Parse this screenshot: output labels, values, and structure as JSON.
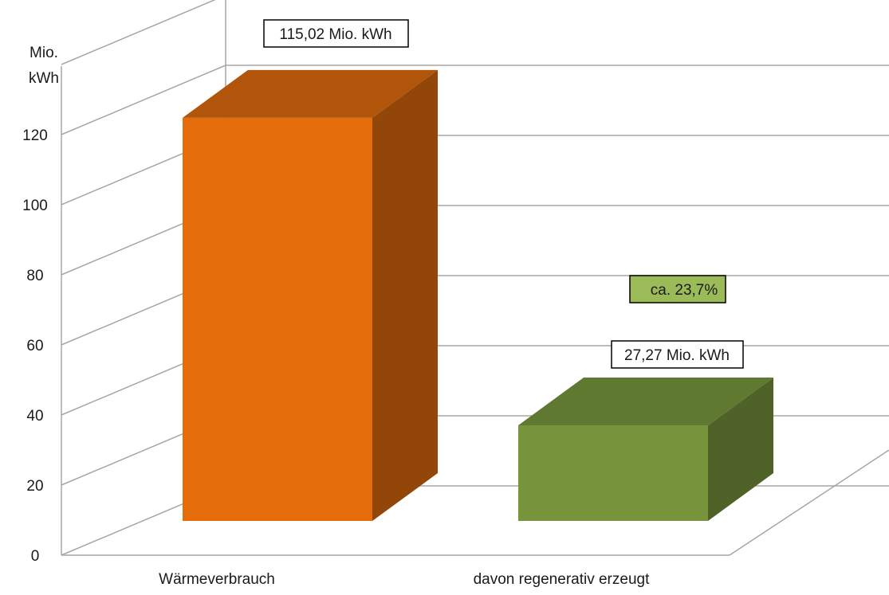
{
  "chart_data": {
    "type": "bar",
    "ylabel": "Mio.\nkWh",
    "ylim": [
      0,
      140
    ],
    "yticks": [
      0,
      20,
      40,
      60,
      80,
      100,
      120
    ],
    "categories": [
      "Wärmeverbrauch",
      "davon regenerativ erzeugt"
    ],
    "values": [
      115.02,
      27.27
    ],
    "data_labels": [
      "115,02 Mio. kWh",
      "27,27 Mio. kWh"
    ],
    "annotation": "ca. 23,7%",
    "grid": true,
    "three_d": true,
    "colors": {
      "bar1_front": "#e46c0a",
      "bar1_top": "#b0550a",
      "bar1_side": "#924607",
      "bar2_front": "#77933c",
      "bar2_top": "#5f7a30",
      "bar2_side": "#4f6228",
      "annotation_fill": "#9bbb59",
      "grid": "#a6a6a6"
    }
  }
}
